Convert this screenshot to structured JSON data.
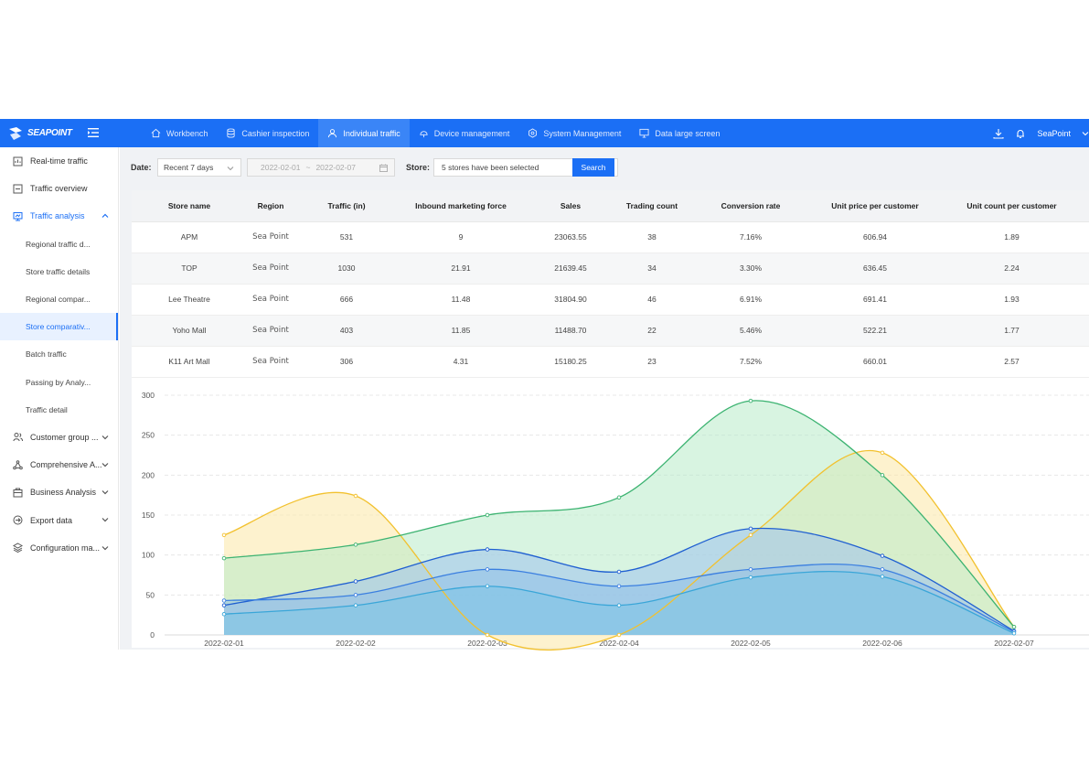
{
  "brand": {
    "name": "SEAPOINT"
  },
  "topnav": {
    "items": [
      {
        "label": "Workbench",
        "icon": "home-icon"
      },
      {
        "label": "Cashier inspection",
        "icon": "database-icon"
      },
      {
        "label": "Individual traffic",
        "icon": "user-icon",
        "active": true
      },
      {
        "label": "Device management",
        "icon": "device-icon"
      },
      {
        "label": "System Management",
        "icon": "settings-icon"
      },
      {
        "label": "Data large screen",
        "icon": "monitor-icon"
      }
    ],
    "user": "SeaPoint"
  },
  "sidebar": {
    "items": [
      {
        "label": "Real-time traffic",
        "type": "top"
      },
      {
        "label": "Traffic overview",
        "type": "top"
      },
      {
        "label": "Traffic analysis",
        "type": "group-open"
      },
      {
        "label": "Regional traffic d...",
        "type": "sub"
      },
      {
        "label": "Store traffic details",
        "type": "sub"
      },
      {
        "label": "Regional compar...",
        "type": "sub"
      },
      {
        "label": "Store comparativ...",
        "type": "sub",
        "selected": true
      },
      {
        "label": "Batch traffic",
        "type": "sub"
      },
      {
        "label": "Passing by Analy...",
        "type": "sub"
      },
      {
        "label": "Traffic detail",
        "type": "sub"
      },
      {
        "label": "Customer group ...",
        "type": "group"
      },
      {
        "label": "Comprehensive A...",
        "type": "group"
      },
      {
        "label": "Business Analysis",
        "type": "group"
      },
      {
        "label": "Export data",
        "type": "group"
      },
      {
        "label": "Configuration ma...",
        "type": "group"
      }
    ]
  },
  "filters": {
    "date_label": "Date:",
    "date_preset": "Recent 7 days",
    "date_start": "2022-02-01",
    "date_sep": "~",
    "date_end": "2022-02-07",
    "store_label": "Store:",
    "store_value": "5 stores have been selected",
    "search_label": "Search"
  },
  "table": {
    "columns": [
      "Store name",
      "Region",
      "Traffic (in)",
      "Inbound marketing force",
      "Sales",
      "Trading count",
      "Conversion rate",
      "Unit price per customer",
      "Unit count per customer"
    ],
    "rows": [
      [
        "APM",
        "Sea Point",
        "531",
        "9",
        "23063.55",
        "38",
        "7.16%",
        "606.94",
        "1.89"
      ],
      [
        "TOP",
        "Sea Point",
        "1030",
        "21.91",
        "21639.45",
        "34",
        "3.30%",
        "636.45",
        "2.24"
      ],
      [
        "Lee Theatre",
        "Sea Point",
        "666",
        "11.48",
        "31804.90",
        "46",
        "6.91%",
        "691.41",
        "1.93"
      ],
      [
        "Yoho Mall",
        "Sea Point",
        "403",
        "11.85",
        "11488.70",
        "22",
        "5.46%",
        "522.21",
        "1.77"
      ],
      [
        "K11 Art Mall",
        "Sea Point",
        "306",
        "4.31",
        "15180.25",
        "23",
        "7.52%",
        "660.01",
        "2.57"
      ]
    ]
  },
  "chart_data": {
    "type": "area",
    "x": [
      "2022-02-01",
      "2022-02-02",
      "2022-02-03",
      "2022-02-04",
      "2022-02-05",
      "2022-02-06",
      "2022-02-07"
    ],
    "ylim": [
      0,
      300
    ],
    "yticks": [
      0,
      50,
      100,
      150,
      200,
      250,
      300
    ],
    "grid": true,
    "series": [
      {
        "color": "#f2c12e",
        "fill": "#fbe7a6",
        "values": [
          125,
          174,
          0,
          0,
          125,
          228,
          10
        ]
      },
      {
        "color": "#3cb371",
        "fill": "#b8ebc9",
        "values": [
          96,
          113,
          150,
          172,
          293,
          200,
          10
        ]
      },
      {
        "color": "#1f5fd1",
        "fill": "#9fc3ee",
        "values": [
          37,
          67,
          107,
          79,
          133,
          99,
          5
        ]
      },
      {
        "color": "#3b7fe0",
        "fill": "#8fc0e8",
        "values": [
          43,
          50,
          82,
          61,
          82,
          82,
          4
        ]
      },
      {
        "color": "#3aa6d8",
        "fill": "#7cc4e6",
        "values": [
          26,
          37,
          61,
          37,
          72,
          73,
          2
        ]
      }
    ]
  }
}
